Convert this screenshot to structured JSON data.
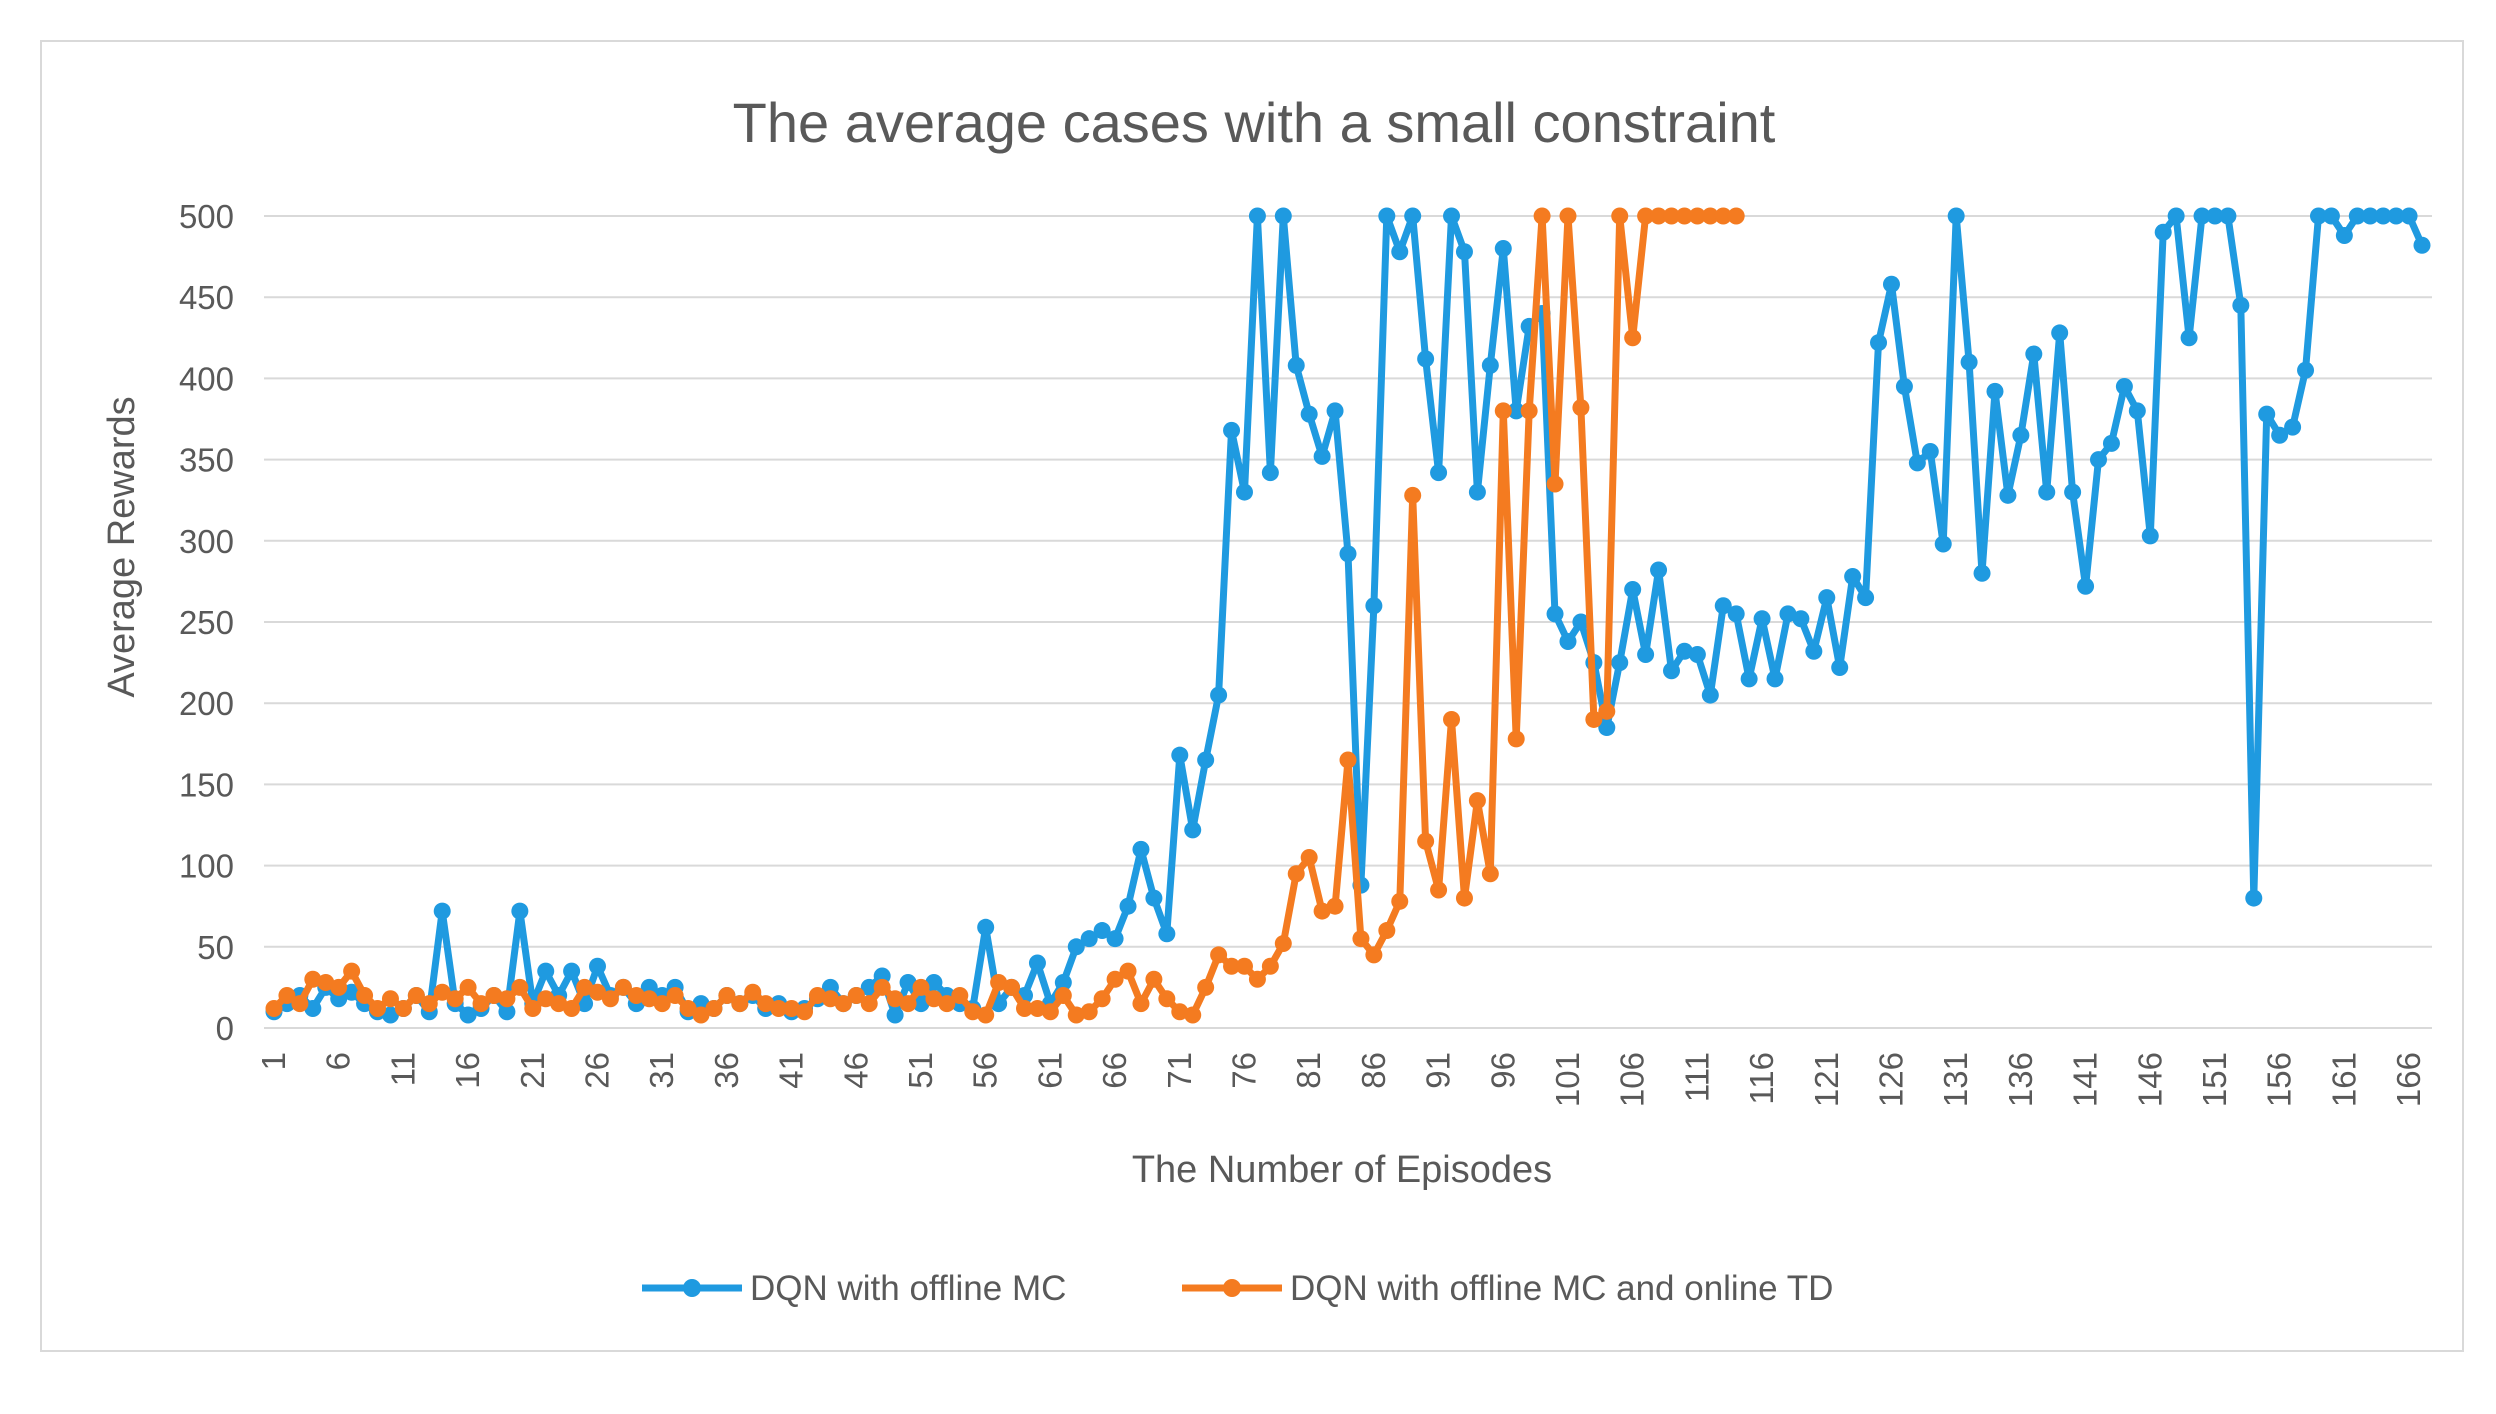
{
  "chart_data": {
    "type": "line",
    "title": "The average cases with a small constraint",
    "xlabel": "The Number of Episodes",
    "ylabel": "Average Rewards",
    "ylim": [
      0,
      500
    ],
    "yticks": [
      0,
      50,
      100,
      150,
      200,
      250,
      300,
      350,
      400,
      450,
      500
    ],
    "xlim": [
      1,
      167
    ],
    "xticks": [
      1,
      6,
      11,
      16,
      21,
      26,
      31,
      36,
      41,
      46,
      51,
      56,
      61,
      66,
      71,
      76,
      81,
      86,
      91,
      96,
      101,
      106,
      111,
      116,
      121,
      126,
      131,
      136,
      141,
      146,
      151,
      156,
      161,
      166
    ],
    "grid": true,
    "legend_position": "bottom",
    "series": [
      {
        "name": "DQN with offline MC",
        "color": "#1f9ae0",
        "x_start": 1,
        "values": [
          10,
          15,
          20,
          12,
          25,
          18,
          22,
          15,
          10,
          8,
          12,
          20,
          10,
          72,
          15,
          8,
          12,
          20,
          10,
          72,
          15,
          35,
          20,
          35,
          15,
          38,
          20,
          25,
          15,
          25,
          20,
          25,
          10,
          15,
          12,
          20,
          15,
          20,
          12,
          15,
          10,
          12,
          18,
          25,
          15,
          20,
          25,
          32,
          8,
          28,
          15,
          28,
          20,
          15,
          12,
          62,
          15,
          25,
          20,
          40,
          15,
          28,
          50,
          55,
          60,
          55,
          75,
          110,
          80,
          58,
          168,
          122,
          165,
          205,
          368,
          330,
          500,
          342,
          500,
          408,
          378,
          352,
          380,
          292,
          88,
          260,
          500,
          478,
          500,
          412,
          342,
          500,
          478,
          330,
          408,
          480,
          380,
          432,
          440,
          255,
          238,
          250,
          225,
          185,
          225,
          270,
          230,
          282,
          220,
          232,
          230,
          205,
          260,
          255,
          215,
          252,
          215,
          255,
          252,
          232,
          265,
          222,
          278,
          265,
          422,
          458,
          395,
          348,
          355,
          298,
          500,
          410,
          280,
          392,
          328,
          365,
          415,
          330,
          428,
          330,
          272,
          350,
          360,
          395,
          380,
          303,
          490,
          500,
          425,
          500,
          500,
          500,
          445,
          80,
          378,
          365,
          370,
          405,
          500,
          500,
          488,
          500,
          500,
          500,
          500,
          500,
          482
        ]
      },
      {
        "name": "DQN with offline MC and online TD",
        "color": "#f47b20",
        "x_start": 1,
        "values": [
          12,
          20,
          15,
          30,
          28,
          25,
          35,
          20,
          12,
          18,
          12,
          20,
          15,
          22,
          18,
          25,
          15,
          20,
          18,
          25,
          12,
          18,
          15,
          12,
          25,
          22,
          18,
          25,
          20,
          18,
          15,
          20,
          12,
          8,
          12,
          20,
          15,
          22,
          15,
          12,
          12,
          10,
          20,
          18,
          15,
          20,
          15,
          25,
          18,
          15,
          25,
          18,
          15,
          20,
          10,
          8,
          28,
          25,
          12,
          12,
          10,
          20,
          8,
          10,
          18,
          30,
          35,
          15,
          30,
          18,
          10,
          8,
          25,
          45,
          38,
          38,
          30,
          38,
          52,
          95,
          105,
          72,
          75,
          165,
          55,
          45,
          60,
          78,
          328,
          115,
          85,
          190,
          80,
          140,
          95,
          380,
          178,
          380,
          500,
          335,
          500,
          382,
          190,
          195,
          500,
          425,
          500,
          500,
          500,
          500,
          500,
          500,
          500,
          500
        ]
      }
    ]
  }
}
